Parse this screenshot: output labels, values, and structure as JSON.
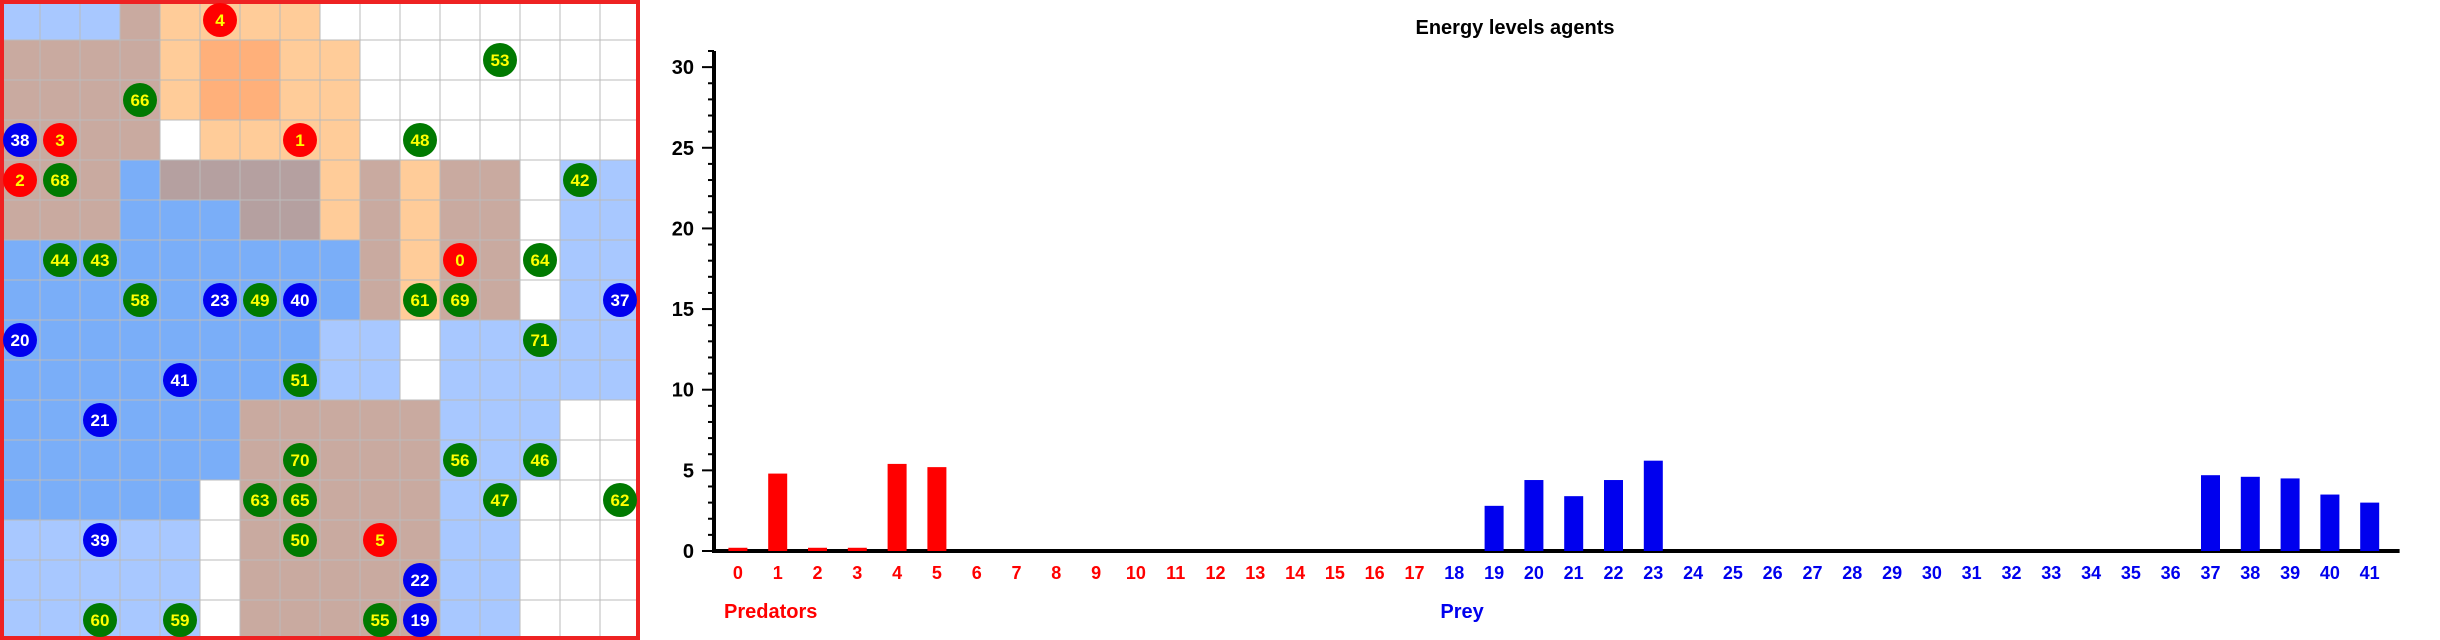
{
  "colors": {
    "predator": "#ff0000",
    "prey": "#0000ee",
    "plant": "#007a00",
    "number_on_plant": "#ffff00",
    "number_on_predator": "#ffff00",
    "number_on_prey": "#ffffff",
    "axis": "#000000",
    "grid_line": "#bbbbbb",
    "frame": "#ee2222"
  },
  "world": {
    "cols": 16,
    "rows": 16,
    "zones": {
      "orange": "#ffcc99",
      "orange_dark": "#ffb07a",
      "blue_light": "#a8c8ff",
      "blue": "#7aaef8",
      "blue_dark": "#5a97f3",
      "mixed": "#c9aaa0",
      "mixed_dark": "#b5a0a0",
      "white": "#ffffff"
    },
    "cells": [
      [
        "L",
        "L",
        "L",
        "M",
        "O",
        "O",
        "O",
        "O",
        "W",
        "W",
        "W",
        "W",
        "W",
        "W",
        "W",
        "W"
      ],
      [
        "M",
        "M",
        "M",
        "M",
        "O",
        "D",
        "D",
        "O",
        "O",
        "W",
        "W",
        "W",
        "W",
        "W",
        "W",
        "W"
      ],
      [
        "M",
        "M",
        "M",
        "M",
        "O",
        "D",
        "D",
        "O",
        "O",
        "W",
        "W",
        "W",
        "W",
        "W",
        "W",
        "W"
      ],
      [
        "M",
        "M",
        "M",
        "M",
        "W",
        "O",
        "O",
        "O",
        "O",
        "W",
        "W",
        "W",
        "W",
        "W",
        "W",
        "W"
      ],
      [
        "M",
        "M",
        "M",
        "B",
        "X",
        "X",
        "X",
        "X",
        "O",
        "M",
        "O",
        "M",
        "M",
        "W",
        "L",
        "L"
      ],
      [
        "M",
        "M",
        "M",
        "B",
        "B",
        "B",
        "X",
        "X",
        "O",
        "M",
        "O",
        "M",
        "M",
        "W",
        "L",
        "L"
      ],
      [
        "B",
        "B",
        "B",
        "B",
        "B",
        "B",
        "B",
        "B",
        "B",
        "M",
        "O",
        "M",
        "M",
        "W",
        "L",
        "L"
      ],
      [
        "B",
        "B",
        "B",
        "B",
        "B",
        "B",
        "B",
        "B",
        "B",
        "M",
        "O",
        "M",
        "M",
        "W",
        "L",
        "L"
      ],
      [
        "B",
        "B",
        "B",
        "B",
        "B",
        "B",
        "B",
        "B",
        "L",
        "L",
        "W",
        "L",
        "L",
        "L",
        "L",
        "L"
      ],
      [
        "B",
        "B",
        "B",
        "B",
        "B",
        "B",
        "B",
        "B",
        "L",
        "L",
        "W",
        "L",
        "L",
        "L",
        "L",
        "L"
      ],
      [
        "B",
        "B",
        "B",
        "B",
        "B",
        "B",
        "M",
        "M",
        "M",
        "M",
        "M",
        "L",
        "L",
        "L",
        "W",
        "W"
      ],
      [
        "B",
        "B",
        "B",
        "B",
        "B",
        "B",
        "M",
        "M",
        "M",
        "M",
        "M",
        "L",
        "L",
        "L",
        "W",
        "W"
      ],
      [
        "B",
        "B",
        "B",
        "B",
        "B",
        "W",
        "M",
        "M",
        "M",
        "M",
        "M",
        "L",
        "L",
        "W",
        "W",
        "W"
      ],
      [
        "L",
        "L",
        "L",
        "L",
        "L",
        "W",
        "M",
        "M",
        "M",
        "M",
        "M",
        "L",
        "L",
        "W",
        "W",
        "W"
      ],
      [
        "L",
        "L",
        "L",
        "L",
        "L",
        "W",
        "M",
        "M",
        "M",
        "M",
        "M",
        "L",
        "L",
        "W",
        "W",
        "W"
      ],
      [
        "L",
        "L",
        "L",
        "L",
        "L",
        "W",
        "M",
        "M",
        "M",
        "M",
        "M",
        "L",
        "L",
        "W",
        "W",
        "W"
      ]
    ],
    "agents": [
      {
        "label": "4",
        "kind": "predator",
        "col": 5,
        "row": 0
      },
      {
        "label": "53",
        "kind": "plant",
        "col": 12,
        "row": 1
      },
      {
        "label": "66",
        "kind": "plant",
        "col": 3,
        "row": 2
      },
      {
        "label": "38",
        "kind": "prey",
        "col": 0,
        "row": 3
      },
      {
        "label": "3",
        "kind": "predator",
        "col": 1,
        "row": 3
      },
      {
        "label": "1",
        "kind": "predator",
        "col": 7,
        "row": 3
      },
      {
        "label": "48",
        "kind": "plant",
        "col": 10,
        "row": 3
      },
      {
        "label": "2",
        "kind": "predator",
        "col": 0,
        "row": 4
      },
      {
        "label": "68",
        "kind": "plant",
        "col": 1,
        "row": 4
      },
      {
        "label": "42",
        "kind": "plant",
        "col": 14,
        "row": 4
      },
      {
        "label": "44",
        "kind": "plant",
        "col": 1,
        "row": 6
      },
      {
        "label": "43",
        "kind": "plant",
        "col": 2,
        "row": 6
      },
      {
        "label": "0",
        "kind": "predator",
        "col": 11,
        "row": 6
      },
      {
        "label": "64",
        "kind": "plant",
        "col": 13,
        "row": 6
      },
      {
        "label": "58",
        "kind": "plant",
        "col": 3,
        "row": 7
      },
      {
        "label": "23",
        "kind": "prey",
        "col": 5,
        "row": 7
      },
      {
        "label": "49",
        "kind": "plant",
        "col": 6,
        "row": 7
      },
      {
        "label": "40",
        "kind": "prey",
        "col": 7,
        "row": 7
      },
      {
        "label": "61",
        "kind": "plant",
        "col": 10,
        "row": 7
      },
      {
        "label": "69",
        "kind": "plant",
        "col": 11,
        "row": 7
      },
      {
        "label": "37",
        "kind": "prey",
        "col": 15,
        "row": 7
      },
      {
        "label": "20",
        "kind": "prey",
        "col": 0,
        "row": 8
      },
      {
        "label": "71",
        "kind": "plant",
        "col": 13,
        "row": 8
      },
      {
        "label": "41",
        "kind": "prey",
        "col": 4,
        "row": 9
      },
      {
        "label": "51",
        "kind": "plant",
        "col": 7,
        "row": 9
      },
      {
        "label": "21",
        "kind": "prey",
        "col": 2,
        "row": 10
      },
      {
        "label": "70",
        "kind": "plant",
        "col": 7,
        "row": 11
      },
      {
        "label": "56",
        "kind": "plant",
        "col": 11,
        "row": 11
      },
      {
        "label": "46",
        "kind": "plant",
        "col": 13,
        "row": 11
      },
      {
        "label": "63",
        "kind": "plant",
        "col": 6,
        "row": 12
      },
      {
        "label": "65",
        "kind": "plant",
        "col": 7,
        "row": 12
      },
      {
        "label": "47",
        "kind": "plant",
        "col": 12,
        "row": 12
      },
      {
        "label": "62",
        "kind": "plant",
        "col": 15,
        "row": 12
      },
      {
        "label": "39",
        "kind": "prey",
        "col": 2,
        "row": 13
      },
      {
        "label": "50",
        "kind": "plant",
        "col": 7,
        "row": 13
      },
      {
        "label": "5",
        "kind": "predator",
        "col": 9,
        "row": 13
      },
      {
        "label": "22",
        "kind": "prey",
        "col": 10,
        "row": 14
      },
      {
        "label": "60",
        "kind": "plant",
        "col": 2,
        "row": 15
      },
      {
        "label": "59",
        "kind": "plant",
        "col": 4,
        "row": 15
      },
      {
        "label": "55",
        "kind": "plant",
        "col": 9,
        "row": 15
      },
      {
        "label": "19",
        "kind": "prey",
        "col": 10,
        "row": 15
      }
    ]
  },
  "chart_data": {
    "type": "bar",
    "title": "Energy levels agents",
    "xlabel": "",
    "ylabel": "",
    "ylim": [
      0,
      31
    ],
    "yticks": [
      0,
      5,
      10,
      15,
      20,
      25,
      30
    ],
    "grid": false,
    "categories": [
      "0",
      "1",
      "2",
      "3",
      "4",
      "5",
      "6",
      "7",
      "8",
      "9",
      "10",
      "11",
      "12",
      "13",
      "14",
      "15",
      "16",
      "17",
      "18",
      "19",
      "20",
      "21",
      "22",
      "23",
      "24",
      "25",
      "26",
      "27",
      "28",
      "29",
      "30",
      "31",
      "32",
      "33",
      "34",
      "35",
      "36",
      "37",
      "38",
      "39",
      "40",
      "41"
    ],
    "groups": [
      {
        "name": "Predators",
        "color": "#ff0000",
        "categories": [
          "0",
          "1",
          "2",
          "3",
          "4",
          "5",
          "6",
          "7",
          "8",
          "9",
          "10",
          "11",
          "12",
          "13",
          "14",
          "15",
          "16",
          "17"
        ]
      },
      {
        "name": "Prey",
        "color": "#0000ee",
        "categories": [
          "18",
          "19",
          "20",
          "21",
          "22",
          "23",
          "24",
          "25",
          "26",
          "27",
          "28",
          "29",
          "30",
          "31",
          "32",
          "33",
          "34",
          "35",
          "36",
          "37",
          "38",
          "39",
          "40",
          "41"
        ]
      }
    ],
    "values": [
      0.2,
      4.8,
      0.2,
      0.2,
      5.4,
      5.2,
      0,
      0,
      0,
      0,
      0,
      0,
      0,
      0,
      0,
      0,
      0,
      0,
      0,
      2.8,
      4.4,
      3.4,
      4.4,
      5.6,
      0,
      0,
      0,
      0,
      0,
      0,
      0,
      0,
      0,
      0,
      0,
      0,
      0,
      4.7,
      4.6,
      4.5,
      3.5,
      3.0
    ]
  }
}
